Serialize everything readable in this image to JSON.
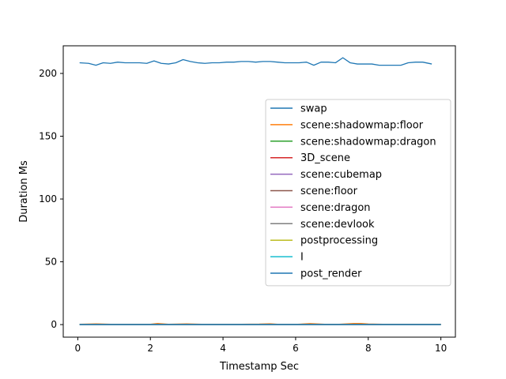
{
  "chart_data": {
    "type": "line",
    "title": "",
    "xlabel": "Timestamp Sec",
    "ylabel": "Duration Ms",
    "xlim": [
      -0.4,
      10.4
    ],
    "ylim": [
      -10,
      222
    ],
    "xticks": [
      0,
      2,
      4,
      6,
      8,
      10
    ],
    "yticks": [
      0,
      50,
      100,
      150,
      200
    ],
    "grid": false,
    "legend_position": "center-right",
    "series": [
      {
        "name": "swap",
        "color": "#1f77b4",
        "x": [
          0.05,
          0.3,
          0.5,
          0.7,
          0.9,
          1.1,
          1.3,
          1.5,
          1.7,
          1.9,
          2.1,
          2.3,
          2.5,
          2.7,
          2.9,
          3.1,
          3.3,
          3.5,
          3.7,
          3.9,
          4.1,
          4.3,
          4.5,
          4.7,
          4.9,
          5.1,
          5.3,
          5.5,
          5.7,
          5.9,
          6.1,
          6.3,
          6.5,
          6.7,
          6.9,
          7.1,
          7.3,
          7.5,
          7.7,
          7.9,
          8.1,
          8.3,
          8.5,
          8.7,
          8.9,
          9.1,
          9.3,
          9.5,
          9.75
        ],
        "y": [
          208.5,
          208,
          206.5,
          208.5,
          208,
          209,
          208.5,
          208.5,
          208.5,
          208,
          210,
          208,
          207.5,
          208.5,
          211,
          209.5,
          208.5,
          208,
          208.5,
          208.5,
          209,
          209,
          209.5,
          209.5,
          209,
          209.5,
          209.5,
          209,
          208.5,
          208.5,
          208.5,
          209,
          206.5,
          209,
          209,
          208.5,
          212.5,
          208.5,
          207.5,
          207.5,
          207.5,
          206.5,
          206.5,
          206.5,
          206.5,
          208.5,
          209,
          209,
          207.5
        ]
      },
      {
        "name": "scene:shadowmap:floor",
        "color": "#ff7f0e",
        "x": [
          0.05,
          0.5,
          1,
          1.5,
          2,
          2.2,
          2.5,
          3,
          3.5,
          4,
          4.5,
          5,
          5.3,
          5.5,
          6,
          6.4,
          6.8,
          7.2,
          7.6,
          7.8,
          8,
          8.4,
          9,
          9.5,
          10
        ],
        "y": [
          0.3,
          0.6,
          0.2,
          0.3,
          0.3,
          0.9,
          0.3,
          0.6,
          0.2,
          0.3,
          0.3,
          0.4,
          0.7,
          0.3,
          0.2,
          0.8,
          0.3,
          0.3,
          0.9,
          0.9,
          0.5,
          0.3,
          0.2,
          0.2,
          0.3
        ]
      },
      {
        "name": "scene:shadowmap:dragon",
        "color": "#2ca02c",
        "x": [
          0.05,
          10
        ],
        "y": [
          0.15,
          0.15
        ]
      },
      {
        "name": "3D_scene",
        "color": "#d62728",
        "x": [
          0.05,
          10
        ],
        "y": [
          0.12,
          0.12
        ]
      },
      {
        "name": "scene:cubemap",
        "color": "#9467bd",
        "x": [
          0.05,
          10
        ],
        "y": [
          0.1,
          0.1
        ]
      },
      {
        "name": "scene:floor",
        "color": "#8c564b",
        "x": [
          0.05,
          10
        ],
        "y": [
          0.08,
          0.08
        ]
      },
      {
        "name": "scene:dragon",
        "color": "#e377c2",
        "x": [
          0.05,
          10
        ],
        "y": [
          0.07,
          0.07
        ]
      },
      {
        "name": "scene:devlook",
        "color": "#7f7f7f",
        "x": [
          0.05,
          10
        ],
        "y": [
          0.06,
          0.06
        ]
      },
      {
        "name": "postprocessing",
        "color": "#bcbd22",
        "x": [
          0.05,
          10
        ],
        "y": [
          0.05,
          0.05
        ]
      },
      {
        "name": "I",
        "color": "#17becf",
        "x": [
          0.05,
          10
        ],
        "y": [
          0.04,
          0.04
        ]
      },
      {
        "name": "post_render",
        "color": "#1f77b4",
        "x": [
          0.05,
          10
        ],
        "y": [
          0.03,
          0.03
        ]
      }
    ]
  }
}
